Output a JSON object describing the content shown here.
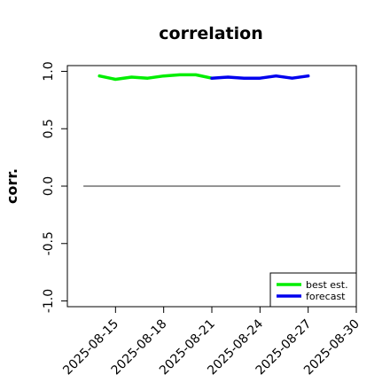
{
  "chart_data": {
    "type": "line",
    "title": "correlation",
    "xlabel": "",
    "ylabel": "corr.",
    "ylim": [
      -1.05,
      1.05
    ],
    "xlim": [
      "2025-08-12",
      "2025-08-30"
    ],
    "y_ticks": [
      "-1.0",
      "-0.5",
      "0.0",
      "0.5",
      "1.0"
    ],
    "x_ticks": [
      "2025-08-15",
      "2025-08-18",
      "2025-08-21",
      "2025-08-24",
      "2025-08-27",
      "2025-08-30"
    ],
    "highlighted_x_tick": "2025-08-21",
    "highlight_color": "#228b22",
    "reference_line": {
      "y": 0,
      "from": "2025-08-13",
      "to": "2025-08-29",
      "color": "#555555"
    },
    "grid": false,
    "legend": {
      "position": "bottom-right"
    },
    "series": [
      {
        "name": "best est.",
        "color": "#00ee00",
        "x": [
          "2025-08-14",
          "2025-08-15",
          "2025-08-16",
          "2025-08-17",
          "2025-08-18",
          "2025-08-19",
          "2025-08-20",
          "2025-08-21"
        ],
        "y": [
          0.96,
          0.93,
          0.95,
          0.94,
          0.96,
          0.97,
          0.97,
          0.94
        ]
      },
      {
        "name": "forecast",
        "color": "#0000ee",
        "x": [
          "2025-08-21",
          "2025-08-22",
          "2025-08-23",
          "2025-08-24",
          "2025-08-25",
          "2025-08-26",
          "2025-08-27"
        ],
        "y": [
          0.94,
          0.95,
          0.94,
          0.94,
          0.96,
          0.94,
          0.96
        ]
      }
    ]
  }
}
